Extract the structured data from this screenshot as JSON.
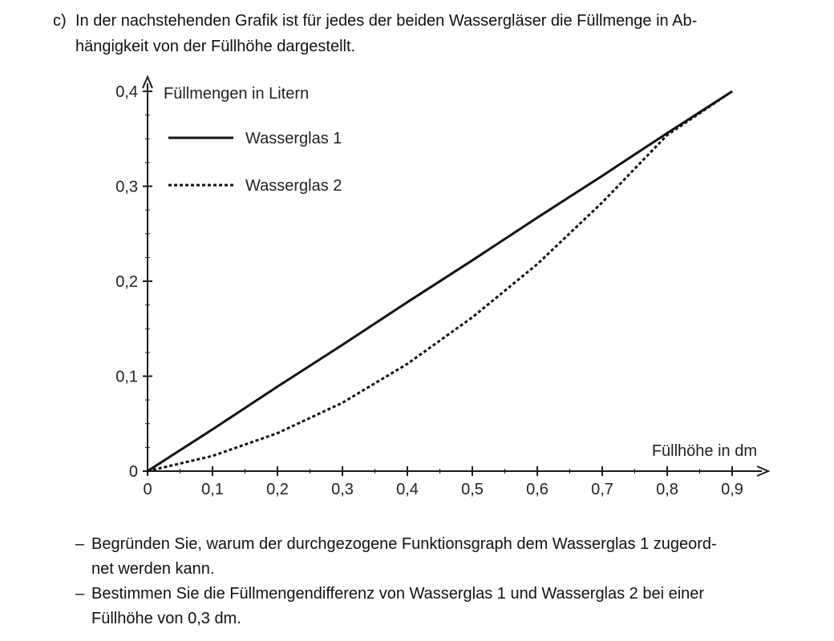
{
  "intro": {
    "label": "c)",
    "lines": [
      "In der nachstehenden Grafik ist für jedes der beiden Wassergläser die Füllmenge in Ab-",
      "hängigkeit von der Füllhöhe dargestellt."
    ]
  },
  "chart_data": {
    "type": "line",
    "xlabel": "Füllhöhe in dm",
    "ylabel": "Füllmengen in Litern",
    "xlim": [
      0,
      0.9
    ],
    "ylim": [
      0,
      0.4
    ],
    "x_ticks": [
      "0",
      "0,1",
      "0,2",
      "0,3",
      "0,4",
      "0,5",
      "0,6",
      "0,7",
      "0,8",
      "0,9"
    ],
    "y_ticks": [
      "0",
      "0,1",
      "0,2",
      "0,3",
      "0,4"
    ],
    "legend_position": "top-left",
    "grid": false,
    "series": [
      {
        "name": "Wasserglas 1",
        "style": "solid",
        "x": [
          0,
          0.1,
          0.2,
          0.3,
          0.4,
          0.5,
          0.6,
          0.7,
          0.8,
          0.9
        ],
        "y": [
          0,
          0.044,
          0.089,
          0.133,
          0.178,
          0.222,
          0.267,
          0.311,
          0.356,
          0.4
        ]
      },
      {
        "name": "Wasserglas 2",
        "style": "dashed",
        "x": [
          0,
          0.1,
          0.2,
          0.3,
          0.4,
          0.5,
          0.6,
          0.7,
          0.8,
          0.9
        ],
        "y": [
          0,
          0.016,
          0.04,
          0.072,
          0.113,
          0.162,
          0.218,
          0.283,
          0.354,
          0.4
        ]
      }
    ]
  },
  "tasks": [
    {
      "dash": "–",
      "lines": [
        "Begründen Sie, warum der durchgezogene Funktionsgraph dem Wasserglas 1 zugeord-",
        "net werden kann."
      ]
    },
    {
      "dash": "–",
      "lines": [
        "Bestimmen Sie die Füllmengendifferenz von Wasserglas 1 und Wasserglas 2 bei einer",
        "Füllhöhe von 0,3 dm."
      ]
    }
  ]
}
